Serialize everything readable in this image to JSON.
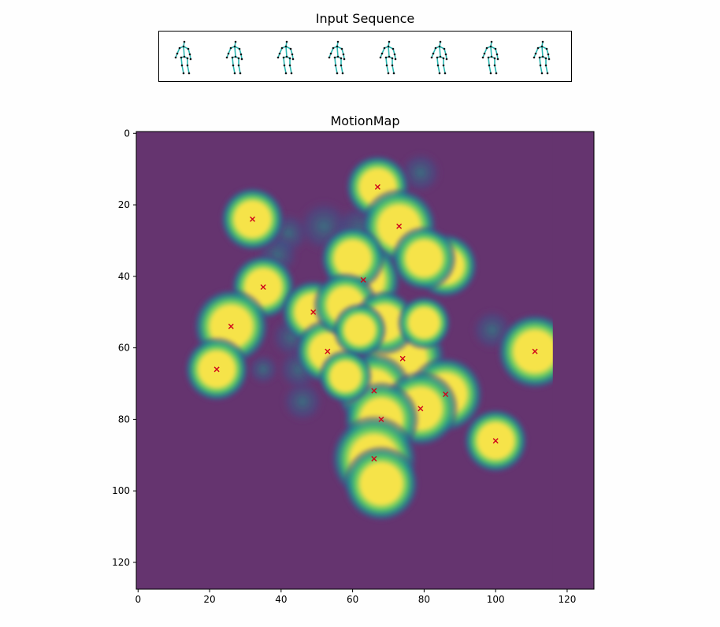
{
  "titles": {
    "sequence": "Input Sequence",
    "map": "MotionMap"
  },
  "sequence": {
    "frame_count": 8,
    "bone_color": "#2ab6b0",
    "joint_color": "#101418"
  },
  "chart_data": {
    "type": "heatmap",
    "title": "MotionMap",
    "xlabel": "",
    "ylabel": "",
    "xlim": [
      -0.5,
      127.5
    ],
    "ylim": [
      127.5,
      -0.5
    ],
    "x_ticks": [
      0,
      20,
      40,
      60,
      80,
      100,
      120
    ],
    "y_ticks": [
      0,
      20,
      40,
      60,
      80,
      100,
      120
    ],
    "background_color": "#65346f",
    "colormap": [
      "#65346f",
      "#3b528b",
      "#21918c",
      "#5ec962",
      "#f6e34a"
    ],
    "marker_color": "#d0021b",
    "marker": "x",
    "peaks": [
      {
        "x": 67,
        "y": 15
      },
      {
        "x": 73,
        "y": 26
      },
      {
        "x": 32,
        "y": 24
      },
      {
        "x": 63,
        "y": 41
      },
      {
        "x": 35,
        "y": 43
      },
      {
        "x": 49,
        "y": 50
      },
      {
        "x": 26,
        "y": 54
      },
      {
        "x": 53,
        "y": 61
      },
      {
        "x": 111,
        "y": 61
      },
      {
        "x": 74,
        "y": 63
      },
      {
        "x": 22,
        "y": 66
      },
      {
        "x": 66,
        "y": 72
      },
      {
        "x": 86,
        "y": 73
      },
      {
        "x": 79,
        "y": 77
      },
      {
        "x": 68,
        "y": 80
      },
      {
        "x": 100,
        "y": 86
      },
      {
        "x": 66,
        "y": 91
      }
    ],
    "blobs": [
      {
        "x": 67,
        "y": 15,
        "r": 6
      },
      {
        "x": 73,
        "y": 26,
        "r": 7
      },
      {
        "x": 32,
        "y": 24,
        "r": 6
      },
      {
        "x": 63,
        "y": 41,
        "r": 7
      },
      {
        "x": 35,
        "y": 43,
        "r": 6
      },
      {
        "x": 49,
        "y": 50,
        "r": 6
      },
      {
        "x": 26,
        "y": 54,
        "r": 7
      },
      {
        "x": 53,
        "y": 61,
        "r": 6
      },
      {
        "x": 111,
        "y": 61,
        "r": 7
      },
      {
        "x": 74,
        "y": 63,
        "r": 8
      },
      {
        "x": 22,
        "y": 66,
        "r": 6
      },
      {
        "x": 66,
        "y": 72,
        "r": 7
      },
      {
        "x": 86,
        "y": 73,
        "r": 7
      },
      {
        "x": 79,
        "y": 77,
        "r": 7
      },
      {
        "x": 68,
        "y": 80,
        "r": 7
      },
      {
        "x": 100,
        "y": 86,
        "r": 6
      },
      {
        "x": 66,
        "y": 91,
        "r": 8
      },
      {
        "x": 68,
        "y": 98,
        "r": 7
      },
      {
        "x": 60,
        "y": 35,
        "r": 6
      },
      {
        "x": 58,
        "y": 48,
        "r": 6
      },
      {
        "x": 69,
        "y": 53,
        "r": 6
      },
      {
        "x": 80,
        "y": 53,
        "r": 5
      },
      {
        "x": 86,
        "y": 37,
        "r": 6
      },
      {
        "x": 80,
        "y": 35,
        "r": 6
      },
      {
        "x": 62,
        "y": 55,
        "r": 5
      },
      {
        "x": 58,
        "y": 68,
        "r": 5
      }
    ],
    "faint_blobs": [
      {
        "x": 42,
        "y": 28,
        "r": 4
      },
      {
        "x": 52,
        "y": 26,
        "r": 5
      },
      {
        "x": 62,
        "y": 27,
        "r": 5
      },
      {
        "x": 35,
        "y": 66,
        "r": 3
      },
      {
        "x": 46,
        "y": 75,
        "r": 4
      },
      {
        "x": 99,
        "y": 55,
        "r": 4
      },
      {
        "x": 79,
        "y": 11,
        "r": 4
      },
      {
        "x": 39,
        "y": 34,
        "r": 4
      },
      {
        "x": 43,
        "y": 57,
        "r": 4
      },
      {
        "x": 45,
        "y": 66,
        "r": 4
      }
    ]
  }
}
